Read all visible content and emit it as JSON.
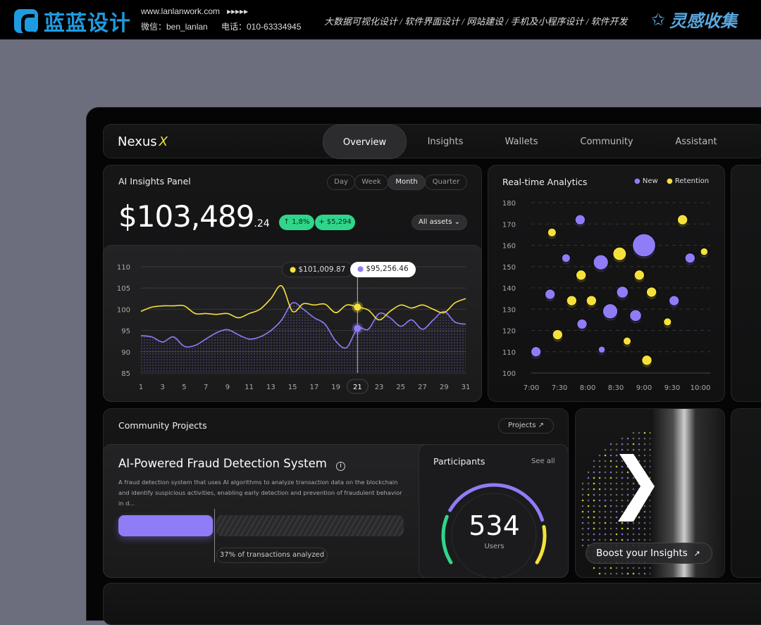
{
  "banner": {
    "brand": "蓝蓝设计",
    "url": "www.lanlanwork.com",
    "arrows": "▸▸▸▸▸",
    "wechat": "微信：ben_lanlan",
    "phone": "电话：010-63334945",
    "services": "大数据可视化设计  /  软件界面设计  /  网站建设  /  手机及小程序设计  /  软件开发",
    "collect": "灵感收集"
  },
  "nav": {
    "logo": "Nexus",
    "logo_mark": "X",
    "items": [
      {
        "label": "Overview",
        "active": true
      },
      {
        "label": "Insights"
      },
      {
        "label": "Wallets"
      },
      {
        "label": "Community"
      },
      {
        "label": "Assistant"
      }
    ]
  },
  "insights": {
    "title": "AI Insights Panel",
    "periods": [
      "Day",
      "Week",
      "Month",
      "Quarter"
    ],
    "selected_period": "Month",
    "value_main": "$103,489",
    "value_cents": ".24",
    "change_pct": "↑ 1,8%",
    "change_abs": "+ $5,294",
    "asset_filter": "All assets",
    "tooltip_yellow": "$101,009.87",
    "tooltip_purple": "$95,256.46",
    "selected_day": "21"
  },
  "analytics": {
    "title": "Real-time Analytics",
    "legend": [
      "New",
      "Retention"
    ]
  },
  "community": {
    "title": "Community Projects",
    "projects_btn": "Projects ↗",
    "project_title": "AI-Powered Fraud Detection System",
    "description": "A fraud detection system that uses AI algorithms to analyze transaction data on the blockchain and identify suspicious activities, enabling early detection and prevention of fraudulent behavior in d...",
    "progress": 0.37,
    "progress_label": "37% of transactions analyzed",
    "participants_title": "Participants",
    "see_all": "See all",
    "participants_count": "534",
    "participants_unit": "Users"
  },
  "boost": {
    "label": "Boost your Insights",
    "arrow": "↗"
  },
  "colors": {
    "purple": "#8f7cf7",
    "yellow": "#f5e13a",
    "green": "#2fd68a"
  },
  "chart_data": [
    {
      "type": "line",
      "x": [
        1,
        2,
        3,
        4,
        5,
        6,
        7,
        8,
        9,
        10,
        11,
        12,
        13,
        14,
        15,
        16,
        17,
        18,
        19,
        20,
        21,
        22,
        23,
        24,
        25,
        26,
        27,
        28,
        29,
        30,
        31
      ],
      "x_ticks": [
        "1",
        "3",
        "5",
        "7",
        "9",
        "11",
        "13",
        "15",
        "17",
        "19",
        "21",
        "23",
        "25",
        "27",
        "29",
        "31"
      ],
      "ylim": [
        85,
        110
      ],
      "y_ticks": [
        "85",
        "90",
        "95",
        "100",
        "105",
        "110"
      ],
      "grid": true,
      "series": [
        {
          "color": "#f5e13a",
          "values": [
            99.5,
            100.5,
            100.8,
            100.8,
            100.8,
            99,
            99,
            98.8,
            99,
            98,
            99,
            100,
            102.5,
            105.5,
            99.5,
            101.3,
            101,
            101.2,
            99.2,
            101,
            100.5,
            99.8,
            97.5,
            99.5,
            101,
            100.3,
            101,
            100,
            99.2,
            101.5,
            102.5
          ]
        },
        {
          "color": "#8f7cf7",
          "area": true,
          "values": [
            93.8,
            93.5,
            92.3,
            93.5,
            91.3,
            91.5,
            93,
            94.5,
            95.2,
            94,
            93,
            93.5,
            95,
            97.5,
            101.5,
            100,
            98,
            96.5,
            92.5,
            91,
            95.5,
            95.3,
            99,
            98,
            96,
            97.5,
            95.3,
            97.5,
            99.5,
            97,
            96.5
          ]
        }
      ]
    },
    {
      "type": "scatter",
      "xlim": [
        "7:00",
        "10:00"
      ],
      "x_ticks": [
        "7:00",
        "7:30",
        "8:00",
        "8:30",
        "9:00",
        "9:30",
        "10:00"
      ],
      "ylim": [
        100,
        180
      ],
      "y_ticks": [
        "100",
        "110",
        "120",
        "130",
        "140",
        "150",
        "160",
        "170",
        "180"
      ],
      "grid": true,
      "legend": "top-right",
      "series": [
        {
          "name": "New",
          "color": "#8f7cf7",
          "points": [
            [
              "7:05",
              110,
              2
            ],
            [
              "7:20",
              137,
              2
            ],
            [
              "7:37",
              154,
              1.5
            ],
            [
              "7:52",
              172,
              2
            ],
            [
              "7:54",
              123,
              2
            ],
            [
              "8:14",
              152,
              3.5
            ],
            [
              "8:15",
              111,
              1
            ],
            [
              "8:24",
              129,
              3.5
            ],
            [
              "8:37",
              138,
              2.5
            ],
            [
              "8:51",
              127,
              2.5
            ],
            [
              "9:00",
              160,
              6
            ],
            [
              "9:32",
              134,
              2
            ],
            [
              "9:49",
              154,
              2
            ]
          ]
        },
        {
          "name": "Retention",
          "color": "#f5e13a",
          "points": [
            [
              "7:22",
              166,
              1.5
            ],
            [
              "7:28",
              118,
              2
            ],
            [
              "7:43",
              134,
              2
            ],
            [
              "7:53",
              146,
              2
            ],
            [
              "8:04",
              134,
              2
            ],
            [
              "8:34",
              156,
              3
            ],
            [
              "8:42",
              115,
              1.3
            ],
            [
              "8:55",
              146,
              2
            ],
            [
              "9:03",
              106,
              2
            ],
            [
              "9:08",
              138,
              2
            ],
            [
              "9:25",
              124,
              1.3
            ],
            [
              "9:41",
              172,
              2
            ],
            [
              "10:04",
              157,
              1.2
            ]
          ]
        }
      ]
    }
  ]
}
